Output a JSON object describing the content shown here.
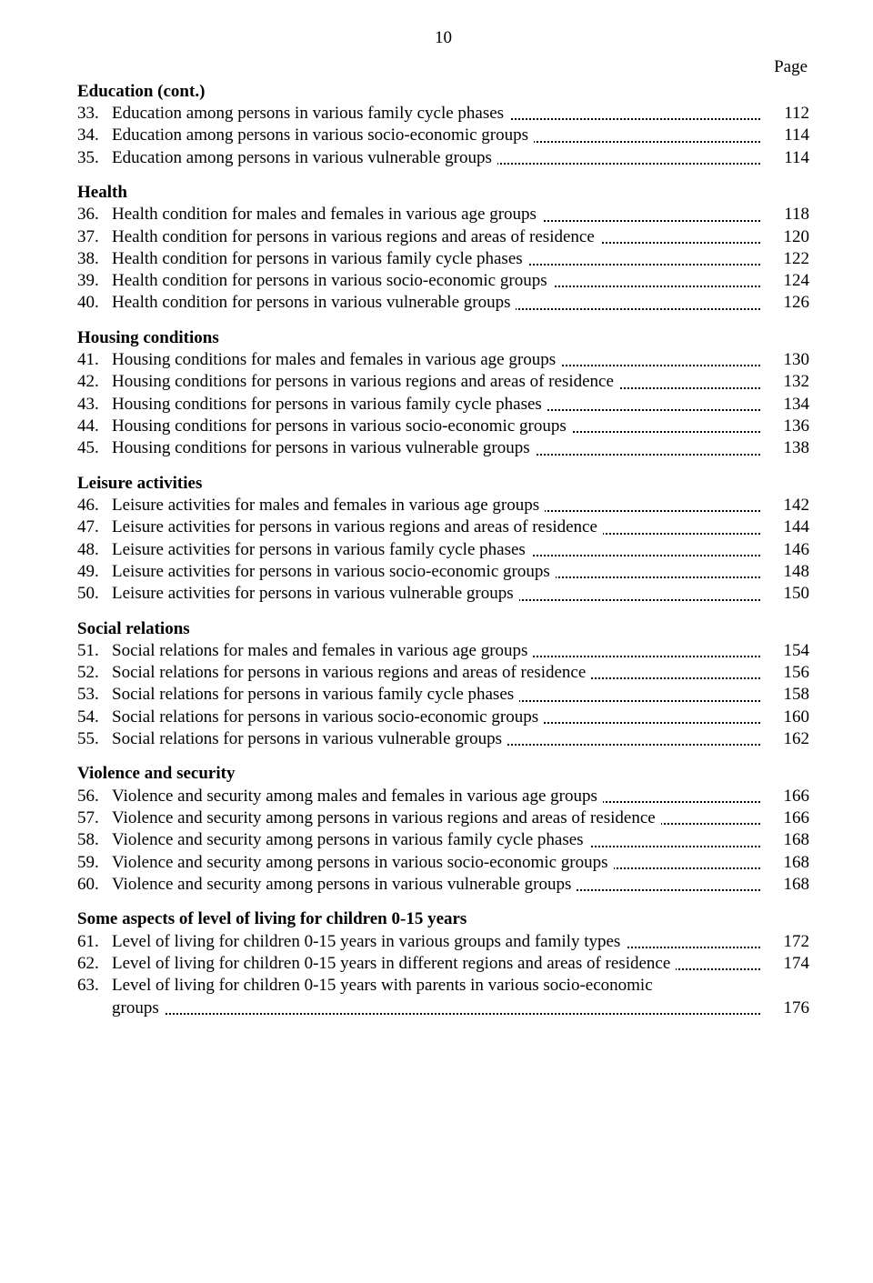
{
  "page_number_top": "10",
  "page_label": "Page",
  "text_color": "#000000",
  "background_color": "#ffffff",
  "font_family": "Times New Roman",
  "base_font_size_pt": 14,
  "sections": [
    {
      "heading": "Education (cont.)",
      "entries": [
        {
          "n": "33.",
          "text": "Education among persons in various family cycle phases",
          "page": "112"
        },
        {
          "n": "34.",
          "text": "Education among persons in various socio-economic groups",
          "page": "114"
        },
        {
          "n": "35.",
          "text": "Education among persons in various vulnerable groups",
          "page": "114"
        }
      ]
    },
    {
      "heading": "Health",
      "entries": [
        {
          "n": "36.",
          "text": "Health condition for males and females in various age groups",
          "page": "118"
        },
        {
          "n": "37.",
          "text": "Health condition for persons in various regions and areas of residence",
          "page": "120"
        },
        {
          "n": "38.",
          "text": "Health condition for persons in various family cycle phases",
          "page": "122"
        },
        {
          "n": "39.",
          "text": "Health condition for persons in various socio-economic groups",
          "page": "124"
        },
        {
          "n": "40.",
          "text": "Health condition for persons in various vulnerable groups",
          "page": "126"
        }
      ]
    },
    {
      "heading": "Housing conditions",
      "entries": [
        {
          "n": "41.",
          "text": "Housing conditions for males and females in various age groups",
          "page": "130"
        },
        {
          "n": "42.",
          "text": "Housing conditions for persons in various regions and areas of residence",
          "page": "132"
        },
        {
          "n": "43.",
          "text": "Housing conditions for persons in various family cycle phases",
          "page": "134"
        },
        {
          "n": "44.",
          "text": "Housing conditions for persons in various socio-economic groups",
          "page": "136"
        },
        {
          "n": "45.",
          "text": "Housing conditions for persons in various vulnerable groups",
          "page": "138"
        }
      ]
    },
    {
      "heading": "Leisure activities",
      "entries": [
        {
          "n": "46.",
          "text": "Leisure activities for males and females in various age groups",
          "page": "142"
        },
        {
          "n": "47.",
          "text": "Leisure activities for persons in various regions and areas of residence",
          "page": "144"
        },
        {
          "n": "48.",
          "text": "Leisure activities for persons in various family cycle phases",
          "page": "146"
        },
        {
          "n": "49.",
          "text": "Leisure activities for persons in various socio-economic groups",
          "page": "148"
        },
        {
          "n": "50.",
          "text": "Leisure activities for persons in various vulnerable groups",
          "page": "150"
        }
      ]
    },
    {
      "heading": "Social relations",
      "entries": [
        {
          "n": "51.",
          "text": "Social relations for males and females in various age groups",
          "page": "154"
        },
        {
          "n": "52.",
          "text": "Social relations for persons in various regions and areas of residence",
          "page": "156"
        },
        {
          "n": "53.",
          "text": "Social relations for persons in various family cycle phases",
          "page": "158"
        },
        {
          "n": "54.",
          "text": "Social relations for persons in various socio-economic groups",
          "page": "160"
        },
        {
          "n": "55.",
          "text": "Social relations for persons in various vulnerable groups",
          "page": "162"
        }
      ]
    },
    {
      "heading": "Violence and security",
      "entries": [
        {
          "n": "56.",
          "text": "Violence and security among males and females in various age groups",
          "page": "166"
        },
        {
          "n": "57.",
          "text": "Violence and security among persons in various regions and areas of residence",
          "page": "166"
        },
        {
          "n": "58.",
          "text": "Violence and security among persons in various family cycle phases",
          "page": "168"
        },
        {
          "n": "59.",
          "text": "Violence and security among persons in various socio-economic groups",
          "page": "168"
        },
        {
          "n": "60.",
          "text": "Violence and security among persons in various vulnerable groups",
          "page": "168"
        }
      ]
    },
    {
      "heading": "Some aspects of level of living for children 0-15 years",
      "entries": [
        {
          "n": "61.",
          "text": "Level of living for children 0-15 years in various groups and family types",
          "page": "172"
        },
        {
          "n": "62.",
          "text": "Level of living for children 0-15 years in different regions and areas of residence",
          "page": "174"
        },
        {
          "n": "63.",
          "text": "Level of living for children 0-15 years with parents in various socio-economic",
          "page": ""
        },
        {
          "n": "",
          "text": "groups",
          "page": "176",
          "indent": true
        }
      ]
    }
  ]
}
